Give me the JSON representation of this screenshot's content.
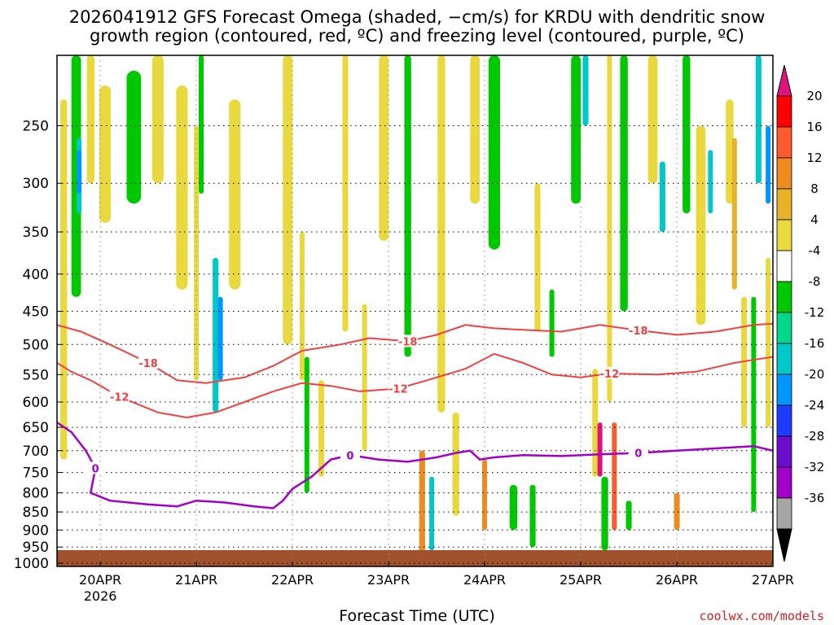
{
  "header": {
    "title_line1": "2026041912 GFS Forecast Omega (shaded, −cm/s) for KRDU with dendritic snow",
    "title_line2": "growth region (contoured, red, ºC) and freezing level (contoured, purple, ºC)"
  },
  "footer": {
    "credit": "coolwx.com/models"
  },
  "chart_data": {
    "type": "heatmap",
    "title": "2026041912 GFS Forecast Omega (shaded, −cm/s) for KRDU with dendritic snow growth region (contoured, red, ºC) and freezing level (contoured, purple, ºC)",
    "xlabel": "Forecast Time (UTC)",
    "ylabel": "",
    "x_ticks": [
      "20APR",
      "21APR",
      "22APR",
      "23APR",
      "24APR",
      "25APR",
      "26APR",
      "27APR"
    ],
    "x_tick_sublabel": "2026",
    "x_range_days": [
      19.55,
      27.0
    ],
    "y_ticks": [
      250,
      300,
      350,
      400,
      450,
      500,
      550,
      600,
      650,
      700,
      750,
      800,
      850,
      900,
      950,
      1000
    ],
    "y_range_hpa": [
      200,
      1010
    ],
    "grid": true,
    "colorbar": {
      "labels": [
        "20",
        "16",
        "12",
        "8",
        "4",
        "-4",
        "-8",
        "-12",
        "-16",
        "-20",
        "-24",
        "-28",
        "-32",
        "-36"
      ],
      "colors": [
        "#ff0000",
        "#ff5a2d",
        "#ee8c20",
        "#e8b228",
        "#e9d93e",
        "#ffffff",
        "#00c800",
        "#00d98c",
        "#00c8c8",
        "#0096ff",
        "#1e3cff",
        "#6a0dcc",
        "#a000c8",
        "#a6a6a6"
      ],
      "top_arrow_color": "#e0147f",
      "bottom_arrow_color": "#000000"
    },
    "contours": [
      {
        "label": "-18",
        "color": "#f04040",
        "points": [
          [
            19.55,
            470
          ],
          [
            19.8,
            480
          ],
          [
            20.1,
            500
          ],
          [
            20.5,
            530
          ],
          [
            20.8,
            560
          ],
          [
            21.1,
            565
          ],
          [
            21.5,
            555
          ],
          [
            21.8,
            535
          ],
          [
            22.1,
            510
          ],
          [
            22.5,
            500
          ],
          [
            22.8,
            490
          ],
          [
            23.2,
            495
          ],
          [
            23.5,
            485
          ],
          [
            23.8,
            470
          ],
          [
            24.1,
            475
          ],
          [
            24.5,
            478
          ],
          [
            24.8,
            480
          ],
          [
            25.2,
            470
          ],
          [
            25.6,
            478
          ],
          [
            26.0,
            485
          ],
          [
            26.4,
            480
          ],
          [
            26.8,
            470
          ],
          [
            27.0,
            468
          ]
        ]
      },
      {
        "label": "-12",
        "color": "#f04040",
        "points": [
          [
            19.55,
            530
          ],
          [
            19.7,
            545
          ],
          [
            19.9,
            560
          ],
          [
            20.2,
            590
          ],
          [
            20.6,
            620
          ],
          [
            20.9,
            630
          ],
          [
            21.2,
            620
          ],
          [
            21.5,
            600
          ],
          [
            21.8,
            580
          ],
          [
            22.1,
            565
          ],
          [
            22.4,
            570
          ],
          [
            22.7,
            580
          ],
          [
            23.1,
            575
          ],
          [
            23.4,
            560
          ],
          [
            23.8,
            540
          ],
          [
            24.1,
            515
          ],
          [
            24.4,
            530
          ],
          [
            24.7,
            550
          ],
          [
            25.0,
            555
          ],
          [
            25.3,
            548
          ],
          [
            25.8,
            550
          ],
          [
            26.2,
            545
          ],
          [
            26.6,
            530
          ],
          [
            27.0,
            520
          ]
        ]
      },
      {
        "label": "0",
        "color": "#a000c8",
        "points": [
          [
            19.55,
            640
          ],
          [
            19.7,
            660
          ],
          [
            19.85,
            700
          ],
          [
            19.95,
            740
          ],
          [
            19.9,
            800
          ],
          [
            20.1,
            820
          ],
          [
            20.5,
            830
          ],
          [
            20.8,
            835
          ],
          [
            21.0,
            820
          ],
          [
            21.3,
            825
          ],
          [
            21.6,
            835
          ],
          [
            21.8,
            840
          ],
          [
            21.9,
            820
          ],
          [
            22.0,
            790
          ],
          [
            22.2,
            760
          ],
          [
            22.4,
            720
          ],
          [
            22.6,
            710
          ],
          [
            22.9,
            720
          ],
          [
            23.2,
            725
          ],
          [
            23.5,
            715
          ],
          [
            23.7,
            705
          ],
          [
            23.85,
            700
          ],
          [
            23.95,
            720
          ],
          [
            24.1,
            715
          ],
          [
            24.4,
            710
          ],
          [
            24.8,
            712
          ],
          [
            25.2,
            708
          ],
          [
            25.6,
            705
          ],
          [
            26.0,
            700
          ],
          [
            26.4,
            695
          ],
          [
            26.8,
            690
          ],
          [
            27.0,
            700
          ]
        ]
      }
    ]
  }
}
